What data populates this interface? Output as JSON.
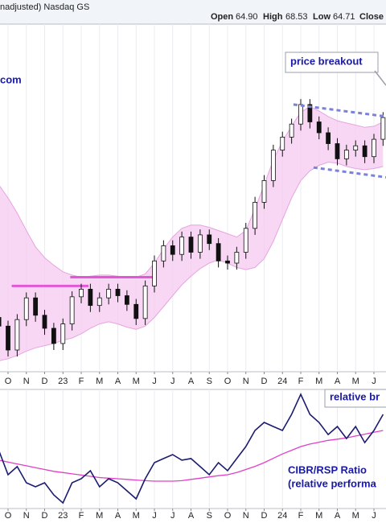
{
  "header": {
    "symbol": "nadjusted)  Nasdaq GS",
    "quote_labels": [
      "Open",
      "High",
      "Low"
    ],
    "quote_values": [
      64.9,
      68.53,
      64.71
    ],
    "quote_value_labels": [
      "64.90",
      "68.53",
      "64.71"
    ],
    "close_label": "Close"
  },
  "chart_data": [
    {
      "type": "candlestick",
      "x": [
        -0.5,
        0,
        0.5,
        1,
        1.5,
        2,
        2.5,
        3,
        3.5,
        4,
        4.5,
        5,
        5.5,
        6,
        6.5,
        7,
        7.5,
        8,
        8.5,
        9,
        9.5,
        10,
        10.5,
        11,
        11.5,
        12,
        12.5,
        13,
        13.5,
        14,
        14.5,
        15,
        15.5,
        16,
        16.5,
        17,
        17.5,
        18,
        18.5,
        19,
        19.5,
        20,
        20.5
      ],
      "open": [
        45.0,
        44.2,
        42.0,
        44.8,
        46.8,
        45.2,
        44.0,
        42.6,
        44.4,
        46.9,
        47.6,
        46.1,
        46.8,
        47.6,
        47.0,
        46.2,
        44.9,
        47.9,
        50.2,
        51.6,
        50.8,
        52.4,
        51.0,
        52.6,
        51.8,
        50.2,
        50.0,
        51.0,
        53.2,
        55.6,
        57.6,
        60.4,
        61.6,
        62.8,
        64.6,
        63.0,
        62.0,
        61.0,
        59.6,
        60.4,
        60.8,
        59.8,
        61.4
      ],
      "high": [
        45.5,
        44.7,
        45.3,
        47.3,
        47.3,
        45.7,
        44.5,
        44.9,
        47.4,
        48.1,
        48.1,
        47.3,
        48.1,
        48.1,
        47.5,
        46.7,
        48.4,
        50.7,
        52.1,
        52.1,
        52.9,
        52.9,
        53.1,
        53.1,
        52.3,
        50.7,
        51.5,
        53.7,
        56.1,
        58.1,
        60.9,
        62.1,
        63.3,
        65.1,
        65.1,
        63.5,
        62.5,
        61.5,
        60.9,
        61.3,
        61.3,
        61.9,
        63.9
      ],
      "low": [
        43.6,
        41.4,
        41.4,
        44.2,
        44.6,
        43.4,
        42.0,
        42.0,
        43.8,
        46.3,
        45.5,
        45.5,
        46.2,
        46.4,
        45.6,
        44.3,
        44.3,
        47.3,
        49.6,
        50.2,
        50.2,
        50.4,
        50.4,
        51.2,
        49.6,
        49.4,
        49.4,
        50.4,
        52.6,
        55.0,
        57.0,
        59.8,
        61.0,
        62.2,
        62.4,
        61.4,
        60.4,
        59.0,
        59.0,
        59.8,
        59.2,
        59.2,
        60.8
      ],
      "close": [
        44.2,
        42.0,
        44.8,
        46.8,
        45.2,
        44.0,
        42.6,
        44.4,
        46.9,
        47.6,
        46.1,
        46.8,
        47.6,
        47.0,
        46.2,
        44.9,
        47.9,
        50.2,
        51.6,
        50.8,
        52.4,
        51.0,
        52.6,
        51.8,
        50.2,
        50.0,
        51.0,
        53.2,
        55.6,
        57.6,
        60.4,
        61.6,
        62.8,
        64.6,
        63.0,
        62.0,
        61.0,
        59.6,
        60.4,
        60.8,
        59.8,
        61.4,
        63.4
      ],
      "bands": {
        "color": "#f6c9f0",
        "upper": [
          57.2,
          56.0,
          54.6,
          53.0,
          51.5,
          50.5,
          49.8,
          49.2,
          48.9,
          48.7,
          48.8,
          48.9,
          48.9,
          48.8,
          48.7,
          48.7,
          49.0,
          50.0,
          51.3,
          52.4,
          53.2,
          53.5,
          53.5,
          53.3,
          53.0,
          52.7,
          52.4,
          53.0,
          55.0,
          57.2,
          59.5,
          61.2,
          62.6,
          63.9,
          64.4,
          64.0,
          63.5,
          63.1,
          62.9,
          62.7,
          62.5,
          62.6,
          63.0
        ],
        "lower": [
          41.0,
          41.2,
          41.5,
          41.9,
          42.2,
          42.4,
          42.6,
          42.9,
          43.1,
          43.5,
          44.0,
          44.4,
          44.6,
          44.4,
          44.1,
          43.9,
          44.2,
          45.0,
          46.0,
          47.0,
          48.0,
          48.8,
          49.5,
          50.0,
          50.3,
          50.0,
          49.6,
          49.4,
          49.6,
          50.4,
          52.0,
          54.0,
          56.0,
          57.6,
          58.5,
          59.0,
          59.3,
          59.2,
          58.9,
          58.7,
          58.6,
          58.7,
          58.9
        ]
      },
      "levels": [
        {
          "y": 47.9,
          "x": [
            0.2,
            4.4
          ]
        },
        {
          "y": 48.7,
          "x": [
            3.4,
            7.9
          ]
        }
      ],
      "level_color": "#e456d8",
      "channel": [
        {
          "x": [
            15.6,
            20.66
          ],
          "y": [
            64.6,
            63.5
          ]
        },
        {
          "x": [
            16.7,
            20.66
          ],
          "y": [
            58.8,
            57.9
          ]
        }
      ],
      "channel_color": "#7b82d8",
      "xlim": [
        -0.44,
        20.66
      ],
      "ylim": [
        40,
        72
      ],
      "grid": true,
      "xticks": [
        {
          "value": 0,
          "label": "O"
        },
        {
          "value": 1,
          "label": "N"
        },
        {
          "value": 2,
          "label": "D"
        },
        {
          "value": 3,
          "label": "23"
        },
        {
          "value": 4,
          "label": "F"
        },
        {
          "value": 5,
          "label": "M"
        },
        {
          "value": 6,
          "label": "A"
        },
        {
          "value": 7,
          "label": "M"
        },
        {
          "value": 8,
          "label": "J"
        },
        {
          "value": 9,
          "label": "J"
        },
        {
          "value": 10,
          "label": "A"
        },
        {
          "value": 11,
          "label": "S"
        },
        {
          "value": 12,
          "label": "O"
        },
        {
          "value": 13,
          "label": "N"
        },
        {
          "value": 14,
          "label": "D"
        },
        {
          "value": 15,
          "label": "24"
        },
        {
          "value": 16,
          "label": "F"
        },
        {
          "value": 17,
          "label": "M"
        },
        {
          "value": 18,
          "label": "A"
        },
        {
          "value": 19,
          "label": "M"
        },
        {
          "value": 20,
          "label": "J"
        }
      ],
      "annotations": [
        "com",
        "price breakout"
      ]
    },
    {
      "type": "line",
      "x": [
        -0.5,
        0,
        0.5,
        1,
        1.5,
        2,
        2.5,
        3,
        3.5,
        4,
        4.5,
        5,
        5.5,
        6,
        6.5,
        7,
        7.5,
        8,
        8.5,
        9,
        9.5,
        10,
        10.5,
        11,
        11.5,
        12,
        12.5,
        13,
        13.5,
        14,
        14.5,
        15,
        15.5,
        16,
        16.5,
        17,
        17.5,
        18,
        18.5,
        19,
        19.5,
        20,
        20.5
      ],
      "series": [
        {
          "color": "#1c1c70",
          "values": [
            46.8,
            27.3,
            33.8,
            20.8,
            17.5,
            20.8,
            11.0,
            4.5,
            20.8,
            24.0,
            30.5,
            17.5,
            24.0,
            20.8,
            14.3,
            7.8,
            24.0,
            37.0,
            40.3,
            43.5,
            39.0,
            40.3,
            33.8,
            27.3,
            37.0,
            30.5,
            40.3,
            50.0,
            63.0,
            69.5,
            66.2,
            63.0,
            76.0,
            92.2,
            76.0,
            69.5,
            59.7,
            66.2,
            56.5,
            66.2,
            53.2,
            63.0,
            76.0
          ]
        },
        {
          "color": "#e040c8",
          "values": [
            39.0,
            37.5,
            36.0,
            34.5,
            33.0,
            31.5,
            30.0,
            29.0,
            28.0,
            27.0,
            26.0,
            25.0,
            24.5,
            24.0,
            23.5,
            23.0,
            22.5,
            22.1,
            22.1,
            22.1,
            22.5,
            23.5,
            24.5,
            25.5,
            26.5,
            27.3,
            29.0,
            31.5,
            34.0,
            37.0,
            40.5,
            44.0,
            47.0,
            50.0,
            52.0,
            53.5,
            55.0,
            56.0,
            57.0,
            58.5,
            60.0,
            61.5,
            63.0
          ]
        }
      ],
      "xlim": [
        -0.44,
        20.66
      ],
      "ylim": [
        0,
        100
      ],
      "grid": true,
      "xticks": [
        {
          "value": 0,
          "label": "O"
        },
        {
          "value": 1,
          "label": "N"
        },
        {
          "value": 2,
          "label": "D"
        },
        {
          "value": 3,
          "label": "23"
        },
        {
          "value": 4,
          "label": "F"
        },
        {
          "value": 5,
          "label": "M"
        },
        {
          "value": 6,
          "label": "A"
        },
        {
          "value": 7,
          "label": "M"
        },
        {
          "value": 8,
          "label": "J"
        },
        {
          "value": 9,
          "label": "J"
        },
        {
          "value": 10,
          "label": "A"
        },
        {
          "value": 11,
          "label": "S"
        },
        {
          "value": 12,
          "label": "O"
        },
        {
          "value": 13,
          "label": "N"
        },
        {
          "value": 14,
          "label": "D"
        },
        {
          "value": 15,
          "label": "24"
        },
        {
          "value": 16,
          "label": "F"
        },
        {
          "value": 17,
          "label": "M"
        },
        {
          "value": 18,
          "label": "A"
        },
        {
          "value": 19,
          "label": "M"
        },
        {
          "value": 20,
          "label": "J"
        }
      ],
      "annotations": [
        "relative br",
        "CIBR/RSP Ratio",
        "(relative performa"
      ]
    }
  ]
}
